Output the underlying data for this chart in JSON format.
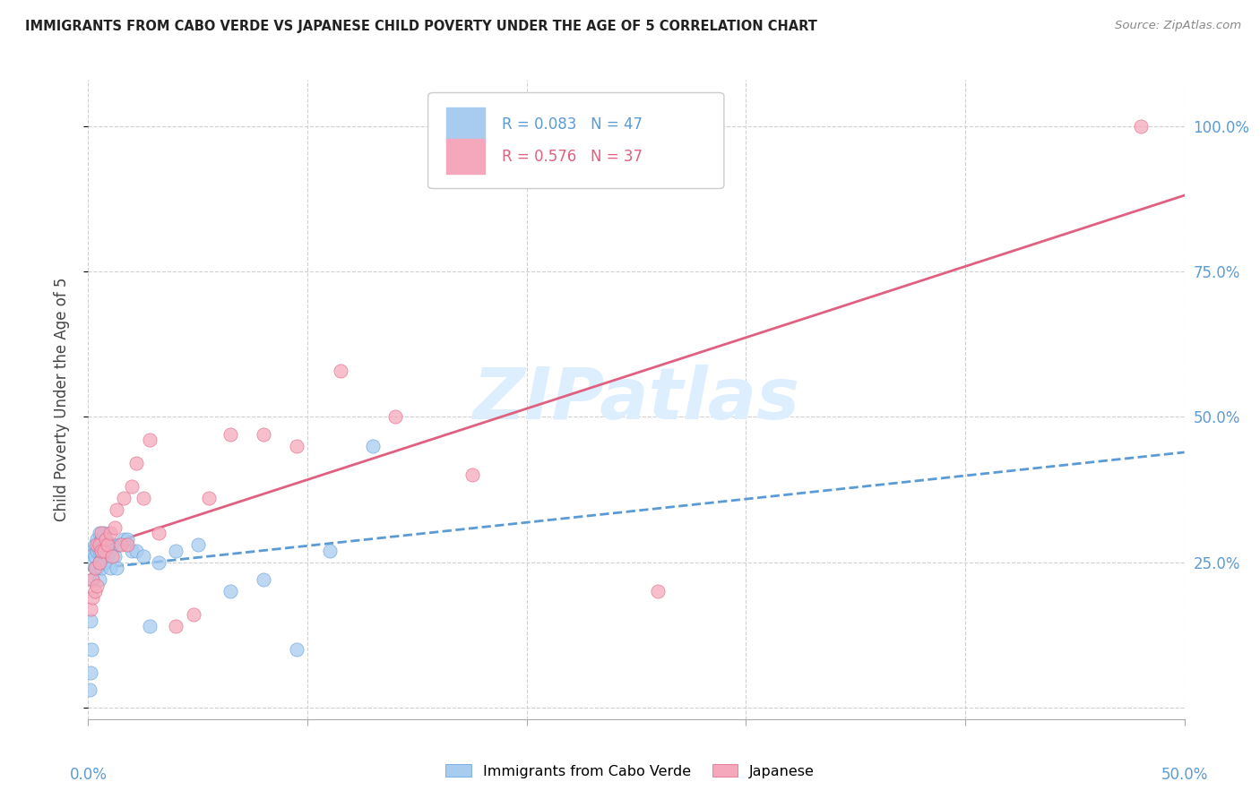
{
  "title": "IMMIGRANTS FROM CABO VERDE VS JAPANESE CHILD POVERTY UNDER THE AGE OF 5 CORRELATION CHART",
  "source": "Source: ZipAtlas.com",
  "ylabel": "Child Poverty Under the Age of 5",
  "legend_label1": "Immigrants from Cabo Verde",
  "legend_label2": "Japanese",
  "r1": 0.083,
  "n1": 47,
  "r2": 0.576,
  "n2": 37,
  "color1": "#a8ccf0",
  "color2": "#f5a8bc",
  "color1_line": "#5b9bd5",
  "color2_line": "#e06080",
  "xlim": [
    0.0,
    0.5
  ],
  "ylim": [
    -0.02,
    1.08
  ],
  "yticks": [
    0.0,
    0.25,
    0.5,
    0.75,
    1.0
  ],
  "ytick_labels": [
    "",
    "25.0%",
    "50.0%",
    "75.0%",
    "100.0%"
  ],
  "xticks": [
    0.0,
    0.1,
    0.2,
    0.3,
    0.4,
    0.5
  ],
  "xtick_labels_bottom": [
    "0.0%",
    "",
    "",
    "",
    "",
    "50.0%"
  ],
  "cabo_verde_x": [
    0.0005,
    0.001,
    0.001,
    0.0015,
    0.002,
    0.002,
    0.002,
    0.003,
    0.003,
    0.003,
    0.004,
    0.004,
    0.004,
    0.005,
    0.005,
    0.005,
    0.005,
    0.006,
    0.006,
    0.006,
    0.007,
    0.007,
    0.007,
    0.008,
    0.008,
    0.009,
    0.009,
    0.01,
    0.01,
    0.011,
    0.012,
    0.013,
    0.014,
    0.016,
    0.018,
    0.02,
    0.022,
    0.025,
    0.028,
    0.032,
    0.04,
    0.05,
    0.065,
    0.08,
    0.095,
    0.11,
    0.13
  ],
  "cabo_verde_y": [
    0.03,
    0.06,
    0.15,
    0.1,
    0.22,
    0.25,
    0.27,
    0.24,
    0.26,
    0.28,
    0.24,
    0.27,
    0.29,
    0.22,
    0.25,
    0.27,
    0.3,
    0.24,
    0.27,
    0.29,
    0.25,
    0.28,
    0.3,
    0.27,
    0.29,
    0.26,
    0.28,
    0.24,
    0.27,
    0.28,
    0.26,
    0.24,
    0.28,
    0.29,
    0.29,
    0.27,
    0.27,
    0.26,
    0.14,
    0.25,
    0.27,
    0.28,
    0.2,
    0.22,
    0.1,
    0.27,
    0.45
  ],
  "japanese_x": [
    0.001,
    0.002,
    0.002,
    0.003,
    0.003,
    0.004,
    0.004,
    0.005,
    0.005,
    0.006,
    0.006,
    0.007,
    0.008,
    0.009,
    0.01,
    0.011,
    0.012,
    0.013,
    0.015,
    0.016,
    0.018,
    0.02,
    0.022,
    0.025,
    0.028,
    0.032,
    0.04,
    0.048,
    0.055,
    0.065,
    0.08,
    0.095,
    0.115,
    0.14,
    0.175,
    0.26,
    0.48
  ],
  "japanese_y": [
    0.17,
    0.19,
    0.22,
    0.2,
    0.24,
    0.21,
    0.28,
    0.25,
    0.28,
    0.27,
    0.3,
    0.27,
    0.29,
    0.28,
    0.3,
    0.26,
    0.31,
    0.34,
    0.28,
    0.36,
    0.28,
    0.38,
    0.42,
    0.36,
    0.46,
    0.3,
    0.14,
    0.16,
    0.36,
    0.47,
    0.47,
    0.45,
    0.58,
    0.5,
    0.4,
    0.2,
    1.0
  ],
  "background_color": "#ffffff",
  "grid_color": "#d0d0d0",
  "tick_color": "#5b9bd5",
  "watermark_text": "ZIPatlas",
  "watermark_color": "#ddeeff"
}
